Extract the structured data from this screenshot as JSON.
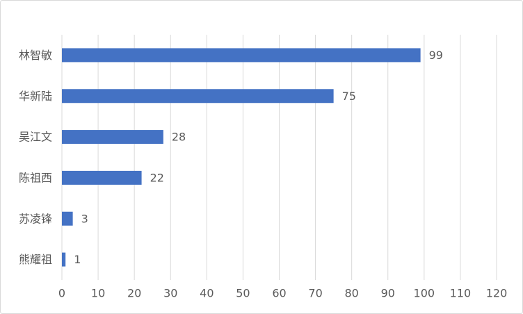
{
  "chart_data": {
    "type": "bar",
    "orientation": "horizontal",
    "categories": [
      "林智敏",
      "华新陆",
      "吴江文",
      "陈祖西",
      "苏凌锋",
      "熊耀祖"
    ],
    "values": [
      99,
      75,
      28,
      22,
      3,
      1
    ],
    "color": "#4472c4",
    "xlim": [
      0,
      120
    ],
    "xticks": [
      0,
      10,
      20,
      30,
      40,
      50,
      60,
      70,
      80,
      90,
      100,
      110,
      120
    ],
    "grid": true,
    "data_labels": true
  }
}
